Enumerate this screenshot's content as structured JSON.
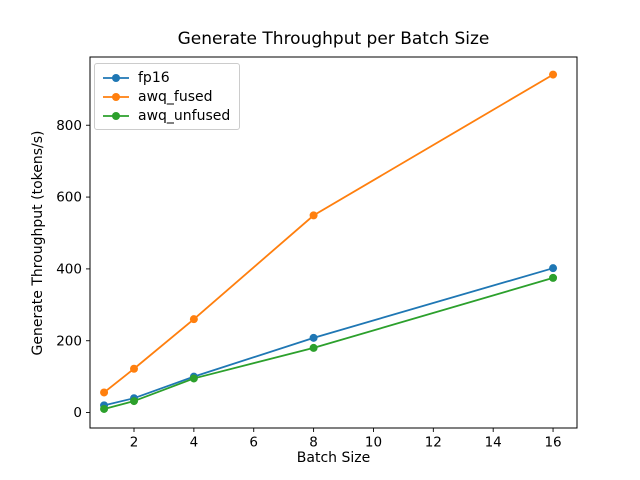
{
  "figure": {
    "background": "#ffffff"
  },
  "chart_data": {
    "type": "line",
    "title": "Generate Throughput per Batch Size",
    "xlabel": "Batch Size",
    "ylabel": "Generate Throughput (tokens/s)",
    "x": [
      1,
      2,
      4,
      8,
      16
    ],
    "series": [
      {
        "name": "fp16",
        "color": "#1f77b4",
        "values": [
          20,
          40,
          100,
          208,
          402
        ]
      },
      {
        "name": "awq_fused",
        "color": "#ff7f0e",
        "values": [
          56,
          122,
          260,
          549,
          941
        ]
      },
      {
        "name": "awq_unfused",
        "color": "#2ca02c",
        "values": [
          10,
          32,
          95,
          180,
          375
        ]
      }
    ],
    "xticks": [
      2,
      4,
      6,
      8,
      10,
      12,
      14,
      16
    ],
    "yticks": [
      0,
      200,
      400,
      600,
      800
    ],
    "xlim": [
      0.53,
      16.8
    ],
    "ylim": [
      -43,
      990
    ],
    "grid": false,
    "legend_position": "upper left",
    "marker": "o",
    "axis_color": "#000000"
  }
}
